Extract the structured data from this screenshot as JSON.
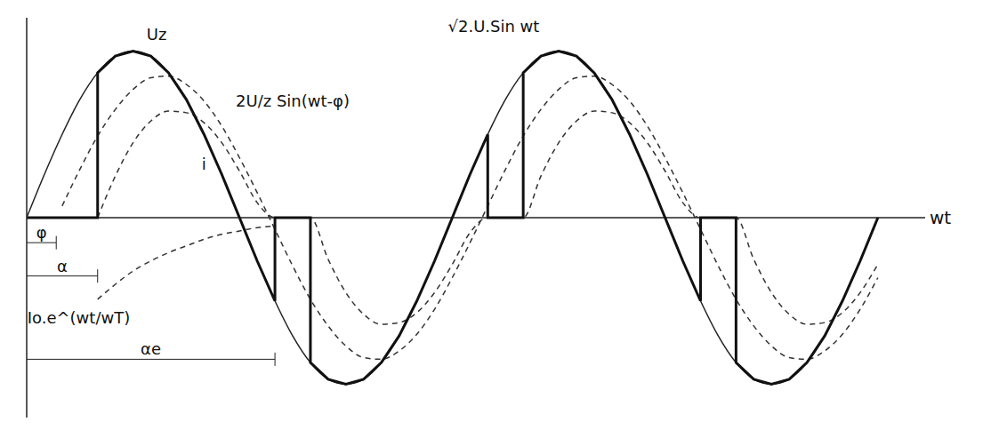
{
  "chart_data": {
    "type": "line",
    "x_label": "wt",
    "xlim": [
      0,
      760
    ],
    "ylim": [
      -1.2,
      1.2
    ],
    "xticks": [],
    "yticks": [],
    "tick_labels": false,
    "grid": false,
    "series": [
      {
        "color": "#222222",
        "line_style": "solid",
        "x": [
          0,
          15,
          30,
          45,
          60,
          75,
          90,
          105,
          120,
          135,
          150,
          165,
          180,
          195,
          210,
          225,
          240,
          255,
          270,
          285,
          300,
          315,
          330,
          345,
          360,
          375,
          390,
          405,
          420,
          435,
          450,
          465,
          480,
          495,
          510,
          525,
          540,
          555,
          570,
          585,
          600,
          615,
          630,
          645,
          660,
          675,
          690,
          705,
          720
        ],
        "values": [
          0,
          0.26,
          0.5,
          0.71,
          0.87,
          0.97,
          1,
          0.97,
          0.87,
          0.71,
          0.5,
          0.26,
          0,
          -0.26,
          -0.5,
          -0.71,
          -0.87,
          -0.97,
          -1,
          -0.97,
          -0.87,
          -0.71,
          -0.5,
          -0.26,
          0,
          0.26,
          0.5,
          0.71,
          0.87,
          0.97,
          1,
          0.97,
          0.87,
          0.71,
          0.5,
          0.26,
          0,
          -0.26,
          -0.5,
          -0.71,
          -0.87,
          -0.97,
          -1,
          -0.97,
          -0.87,
          -0.71,
          -0.5,
          -0.26,
          0
        ]
      },
      {
        "color": "#333333",
        "line_style": "dashed",
        "x": [
          30,
          45,
          60,
          75,
          90,
          105,
          120,
          135,
          150,
          165,
          180,
          195,
          210,
          225,
          240,
          255,
          270,
          285,
          300,
          315,
          330,
          345,
          360,
          375,
          390,
          405,
          420,
          435,
          450,
          465,
          480,
          495,
          510,
          525,
          540,
          555,
          570,
          585,
          600,
          615,
          630,
          645,
          660,
          675,
          690,
          705,
          720
        ],
        "values": [
          0.07,
          0.29,
          0.49,
          0.65,
          0.77,
          0.84,
          0.85,
          0.8,
          0.7,
          0.55,
          0.36,
          0.15,
          -0.07,
          -0.29,
          -0.49,
          -0.65,
          -0.77,
          -0.84,
          -0.85,
          -0.8,
          -0.7,
          -0.55,
          -0.36,
          -0.15,
          0.07,
          0.29,
          0.49,
          0.65,
          0.77,
          0.84,
          0.85,
          0.8,
          0.7,
          0.55,
          0.36,
          0.15,
          -0.07,
          -0.29,
          -0.49,
          -0.65,
          -0.77,
          -0.84,
          -0.85,
          -0.8,
          -0.7,
          -0.55,
          -0.36
        ]
      },
      {
        "color": "#333333",
        "line_style": "dashed",
        "x": [
          60,
          75,
          90,
          105,
          120,
          135,
          150,
          165,
          180,
          195,
          210
        ],
        "values": [
          -0.49,
          -0.4,
          -0.32,
          -0.26,
          -0.21,
          -0.17,
          -0.13,
          -0.1,
          -0.08,
          -0.06,
          -0.05
        ]
      },
      {
        "color": "#333333",
        "line_style": "dashed",
        "x": [
          60,
          75,
          90,
          105,
          120,
          135,
          150,
          165,
          180,
          195,
          210,
          225,
          240,
          255,
          270,
          285,
          300,
          315,
          330,
          345,
          360,
          375,
          390,
          405,
          420,
          435,
          450,
          465,
          480,
          495,
          510,
          525,
          540,
          555,
          570,
          585,
          600,
          615,
          630,
          645,
          660,
          675,
          690,
          705,
          720
        ],
        "values": [
          0,
          0.25,
          0.45,
          0.58,
          0.64,
          0.63,
          0.57,
          0.45,
          0.28,
          0.09,
          0,
          0,
          0,
          -0.25,
          -0.45,
          -0.58,
          -0.64,
          -0.63,
          -0.57,
          -0.45,
          -0.28,
          -0.09,
          0,
          0,
          0,
          0.25,
          0.45,
          0.58,
          0.64,
          0.63,
          0.57,
          0.45,
          0.28,
          0.09,
          0,
          0,
          0,
          -0.25,
          -0.45,
          -0.58,
          -0.64,
          -0.63,
          -0.57,
          -0.45,
          -0.28
        ]
      },
      {
        "color": "#111111",
        "line_style": "bold",
        "x": [
          0,
          60,
          60,
          75,
          90,
          105,
          120,
          135,
          150,
          165,
          180,
          195,
          210,
          210,
          240,
          240,
          255,
          270,
          285,
          300,
          315,
          330,
          345,
          360,
          375,
          390,
          390,
          420,
          420,
          435,
          450,
          465,
          480,
          495,
          510,
          525,
          540,
          555,
          570,
          570,
          600,
          600,
          615,
          630,
          645,
          660,
          675,
          690,
          705,
          720
        ],
        "values": [
          0,
          0,
          0.87,
          0.97,
          1,
          0.97,
          0.87,
          0.71,
          0.5,
          0.26,
          0,
          -0.26,
          -0.5,
          0,
          0,
          -0.87,
          -0.97,
          -1,
          -0.97,
          -0.87,
          -0.71,
          -0.5,
          -0.26,
          0,
          0.26,
          0.5,
          0,
          0,
          0.87,
          0.97,
          1,
          0.97,
          0.87,
          0.71,
          0.5,
          0.26,
          0,
          -0.26,
          -0.5,
          0,
          0,
          -0.87,
          -0.97,
          -1,
          -0.97,
          -0.87,
          -0.71,
          -0.5,
          -0.26,
          0
        ]
      }
    ],
    "annotations": [
      {
        "text": "Uz",
        "x": 110,
        "y": 1.1
      },
      {
        "text": "√2.U.Sin wt",
        "x": 395,
        "y": 1.15
      },
      {
        "text": "2U/z Sin(wt-φ)",
        "x": 225,
        "y": 0.7
      },
      {
        "text": "i",
        "x": 150,
        "y": 0.32
      },
      {
        "text": "Io.e^(wt/wT)",
        "x": 44,
        "y": -0.6
      }
    ],
    "angle_marks": [
      {
        "label": "φ",
        "value": 25,
        "y": -0.15
      },
      {
        "label": "α",
        "value": 60,
        "y": -0.35
      },
      {
        "label": "αe",
        "value": 210,
        "y": -0.85
      }
    ]
  }
}
